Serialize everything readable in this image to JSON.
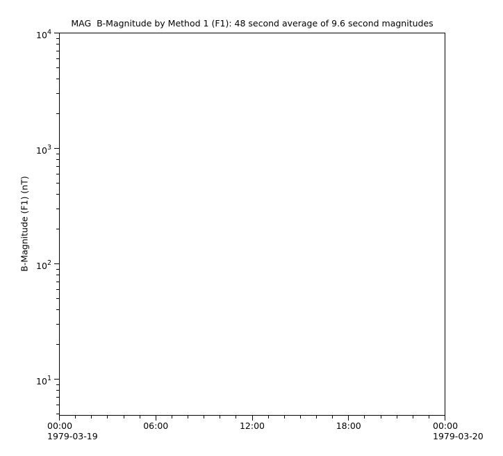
{
  "chart_data": {
    "type": "line",
    "title": "MAG  B-Magnitude by Method 1 (F1): 48 second average of 9.6 second magnitudes",
    "xlabel": "",
    "ylabel": "B-Magnitude (F1) (nT)",
    "x_axis": {
      "start": "1979-03-19 00:00",
      "end": "1979-03-20 00:00",
      "total_hours": 24,
      "major_tick_hours": [
        0,
        6,
        12,
        18,
        24
      ],
      "major_tick_labels": [
        "00:00",
        "06:00",
        "12:00",
        "18:00",
        "00:00"
      ],
      "date_line_labels": [
        "1979-03-19",
        "",
        "",
        "",
        "1979-03-20"
      ],
      "minor_tick_interval_hours": 1
    },
    "y_axis": {
      "scale": "log",
      "log_base": 10,
      "major_tick_exponents": [
        4,
        3,
        2,
        1
      ],
      "major_tick_values": [
        10000,
        1000,
        100,
        10
      ],
      "minor_tick_mantissas": [
        2,
        3,
        4,
        5,
        6,
        7,
        8,
        9
      ],
      "ylim": [
        4.87,
        10000
      ]
    },
    "grid": false,
    "legend": false,
    "series": []
  }
}
